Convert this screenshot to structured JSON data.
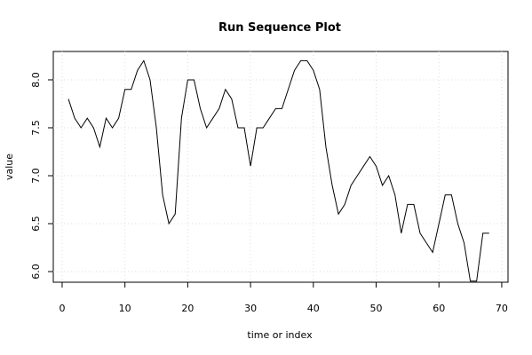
{
  "chart_data": {
    "type": "line",
    "title": "Run Sequence Plot",
    "x_label": "time or index",
    "y_label": "value",
    "x": [
      1,
      2,
      3,
      4,
      5,
      6,
      7,
      8,
      9,
      10,
      11,
      12,
      13,
      14,
      15,
      16,
      17,
      18,
      19,
      20,
      21,
      22,
      23,
      24,
      25,
      26,
      27,
      28,
      29,
      30,
      31,
      32,
      33,
      34,
      35,
      36,
      37,
      38,
      39,
      40,
      41,
      42,
      43,
      44,
      45,
      46,
      47,
      48,
      49,
      50,
      51,
      52,
      53,
      54,
      55,
      56,
      57,
      58,
      59,
      60,
      61,
      62,
      63,
      64,
      65,
      66,
      67,
      68
    ],
    "series": [
      {
        "name": "value",
        "color": "#000000",
        "values": [
          7.8,
          7.6,
          7.5,
          7.6,
          7.5,
          7.3,
          7.6,
          7.5,
          7.6,
          7.9,
          7.9,
          8.1,
          8.2,
          8.0,
          7.5,
          6.8,
          6.5,
          6.6,
          7.6,
          8.0,
          8.0,
          7.7,
          7.5,
          7.6,
          7.7,
          7.9,
          7.8,
          7.5,
          7.5,
          7.1,
          7.5,
          7.5,
          7.6,
          7.7,
          7.7,
          7.9,
          8.1,
          8.2,
          8.2,
          8.1,
          7.9,
          7.3,
          6.9,
          6.6,
          6.7,
          6.9,
          7.0,
          7.1,
          7.2,
          7.1,
          6.9,
          7.0,
          6.8,
          6.4,
          6.7,
          6.7,
          6.4,
          6.3,
          6.2,
          6.5,
          6.8,
          6.8,
          6.5,
          6.3,
          5.9,
          5.9,
          6.4,
          6.4
        ]
      }
    ],
    "xlim": [
      -1.41,
      71.0
    ],
    "ylim": [
      5.889,
      8.296
    ],
    "xticks": [
      0,
      10,
      20,
      30,
      40,
      50,
      60,
      70
    ],
    "yticks": [
      {
        "value": 6,
        "label": "6.0"
      },
      {
        "value": 6.5,
        "label": "6.5"
      },
      {
        "value": 7,
        "label": "7.0"
      },
      {
        "value": 7.5,
        "label": "7.5"
      },
      {
        "value": 8,
        "label": "8.0"
      }
    ],
    "grid": true
  }
}
